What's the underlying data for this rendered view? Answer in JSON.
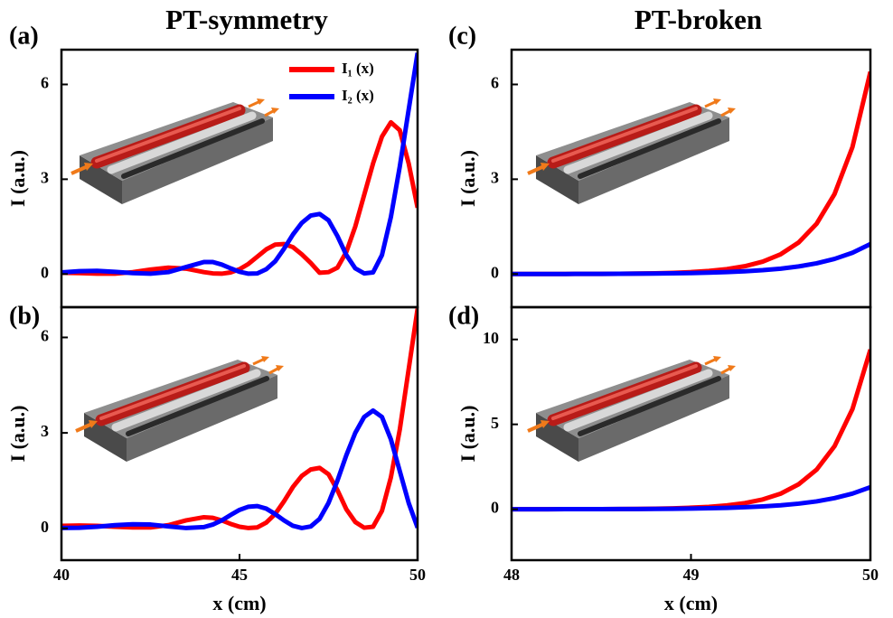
{
  "chart_data": [
    {
      "type": "line",
      "panel_label": "(a)",
      "title": "PT-symmetry",
      "ylabel": "I (a.u.)",
      "x": [
        40,
        40.5,
        41,
        41.5,
        42,
        42.5,
        43,
        43.5,
        44,
        44.25,
        44.5,
        44.75,
        45,
        45.25,
        45.5,
        45.75,
        46,
        46.25,
        46.5,
        46.75,
        47,
        47.25,
        47.5,
        47.75,
        48,
        48.25,
        48.5,
        48.75,
        49,
        49.25,
        49.5,
        49.75,
        50
      ],
      "series": [
        {
          "name": "I₁ (x)",
          "color": "#ff0000",
          "values": [
            0.04,
            0.03,
            0.01,
            0.01,
            0.06,
            0.14,
            0.2,
            0.17,
            0.06,
            0.02,
            0.01,
            0.05,
            0.15,
            0.32,
            0.55,
            0.78,
            0.93,
            0.95,
            0.85,
            0.62,
            0.35,
            0.04,
            0.06,
            0.2,
            0.7,
            1.5,
            2.5,
            3.5,
            4.35,
            4.8,
            4.55,
            3.5,
            2.1
          ]
        },
        {
          "name": "I₂ (x)",
          "color": "#0000ff",
          "values": [
            0.05,
            0.09,
            0.1,
            0.07,
            0.03,
            0.01,
            0.06,
            0.22,
            0.38,
            0.38,
            0.3,
            0.18,
            0.07,
            0.01,
            0.02,
            0.15,
            0.4,
            0.8,
            1.25,
            1.62,
            1.85,
            1.9,
            1.7,
            1.2,
            0.6,
            0.18,
            0.02,
            0.05,
            0.6,
            1.8,
            3.4,
            5.2,
            7.0
          ]
        }
      ],
      "xlim": [
        40,
        50
      ],
      "ylim": [
        -1.05,
        7.1
      ],
      "yticks": [
        0,
        3,
        6
      ],
      "legend": "upper right"
    },
    {
      "type": "line",
      "panel_label": "(b)",
      "ylabel": "I (a.u.)",
      "xlabel": "x (cm)",
      "x": [
        40,
        40.5,
        41,
        41.5,
        42,
        42.5,
        43,
        43.5,
        44,
        44.25,
        44.5,
        44.75,
        45,
        45.25,
        45.5,
        45.75,
        46,
        46.25,
        46.5,
        46.75,
        47,
        47.25,
        47.5,
        47.75,
        48,
        48.25,
        48.5,
        48.75,
        49,
        49.25,
        49.5,
        49.75,
        50
      ],
      "series": [
        {
          "color": "#ff0000",
          "values": [
            0.08,
            0.09,
            0.08,
            0.05,
            0.03,
            0.03,
            0.1,
            0.25,
            0.35,
            0.33,
            0.25,
            0.14,
            0.05,
            0.01,
            0.03,
            0.18,
            0.45,
            0.85,
            1.3,
            1.65,
            1.85,
            1.9,
            1.7,
            1.2,
            0.6,
            0.2,
            0.02,
            0.05,
            0.55,
            1.6,
            3.1,
            5.0,
            6.9
          ]
        },
        {
          "color": "#0000ff",
          "values": [
            0.01,
            0.02,
            0.05,
            0.1,
            0.13,
            0.12,
            0.06,
            0.01,
            0.04,
            0.12,
            0.25,
            0.42,
            0.58,
            0.68,
            0.7,
            0.62,
            0.45,
            0.25,
            0.08,
            0.01,
            0.06,
            0.3,
            0.8,
            1.5,
            2.3,
            3.0,
            3.5,
            3.7,
            3.5,
            2.8,
            1.8,
            0.8,
            0.02
          ]
        }
      ],
      "xlim": [
        40,
        50
      ],
      "xticks": [
        40,
        45,
        50
      ],
      "ylim": [
        -1,
        6.95
      ],
      "yticks": [
        0,
        3,
        6
      ]
    },
    {
      "type": "line",
      "panel_label": "(c)",
      "title": "PT-broken",
      "ylabel": "I (a.u.)",
      "x": [
        48,
        48.1,
        48.2,
        48.3,
        48.4,
        48.5,
        48.6,
        48.7,
        48.8,
        48.9,
        49,
        49.1,
        49.2,
        49.3,
        49.4,
        49.5,
        49.6,
        49.7,
        49.8,
        49.9,
        50
      ],
      "series": [
        {
          "color": "#ff0000",
          "values": [
            0.0006,
            0.0009,
            0.0015,
            0.0024,
            0.0038,
            0.006,
            0.0095,
            0.015,
            0.024,
            0.038,
            0.061,
            0.097,
            0.155,
            0.247,
            0.393,
            0.626,
            0.998,
            1.59,
            2.53,
            4.02,
            6.4
          ]
        },
        {
          "color": "#0000ff",
          "values": [
            0.001,
            0.0014,
            0.0019,
            0.0027,
            0.0039,
            0.0055,
            0.0077,
            0.0108,
            0.0153,
            0.0217,
            0.0305,
            0.043,
            0.061,
            0.086,
            0.121,
            0.17,
            0.24,
            0.338,
            0.478,
            0.674,
            0.95
          ]
        }
      ],
      "xlim": [
        48,
        50
      ],
      "ylim": [
        -1.05,
        7.1
      ],
      "yticks": [
        0,
        3,
        6
      ]
    },
    {
      "type": "line",
      "panel_label": "(d)",
      "ylabel": "I (a.u.)",
      "xlabel": "x (cm)",
      "x": [
        48,
        48.1,
        48.2,
        48.3,
        48.4,
        48.5,
        48.6,
        48.7,
        48.8,
        48.9,
        49,
        49.1,
        49.2,
        49.3,
        49.4,
        49.5,
        49.6,
        49.7,
        49.8,
        49.9,
        50
      ],
      "series": [
        {
          "color": "#ff0000",
          "values": [
            0.0009,
            0.0014,
            0.0022,
            0.0035,
            0.0055,
            0.0088,
            0.014,
            0.022,
            0.035,
            0.056,
            0.09,
            0.143,
            0.227,
            0.363,
            0.577,
            0.919,
            1.47,
            2.33,
            3.71,
            5.9,
            9.4
          ]
        },
        {
          "color": "#0000ff",
          "values": [
            0.0013,
            0.0019,
            0.0027,
            0.0037,
            0.0053,
            0.0075,
            0.0105,
            0.0148,
            0.0209,
            0.0296,
            0.0417,
            0.0589,
            0.0829,
            0.117,
            0.165,
            0.233,
            0.329,
            0.463,
            0.654,
            0.922,
            1.3
          ]
        }
      ],
      "xlim": [
        48,
        50
      ],
      "xticks": [
        48,
        49,
        50
      ],
      "ylim": [
        -3,
        11.9
      ],
      "yticks": [
        0,
        5,
        10
      ]
    }
  ]
}
